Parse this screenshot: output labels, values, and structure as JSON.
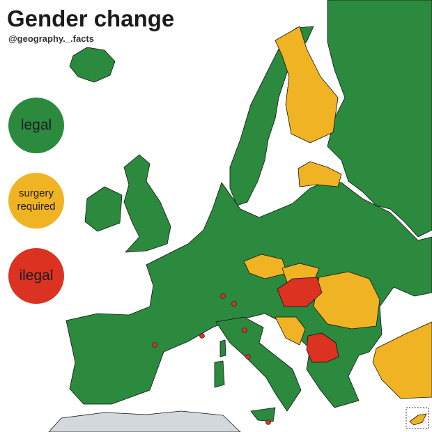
{
  "header": {
    "title": "Gender change",
    "subtitle": "@geography._.facts"
  },
  "legend": [
    {
      "label": "legal",
      "color": "#2b8a3e"
    },
    {
      "label": "surgery required",
      "color": "#f0b323"
    },
    {
      "label": "ilegal",
      "color": "#dc3222"
    }
  ]
}
